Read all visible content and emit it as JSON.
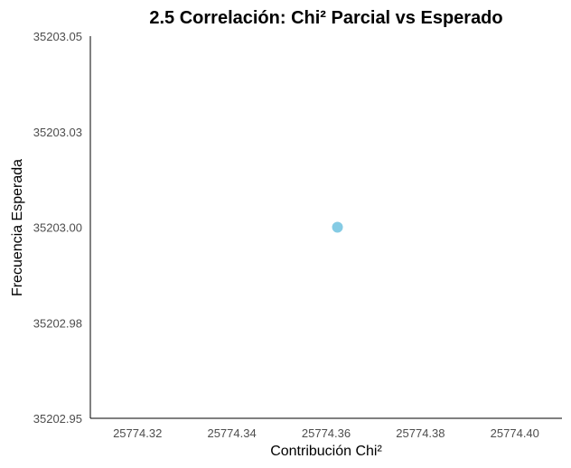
{
  "chart_data": {
    "type": "scatter",
    "title": "2.5 Correlación: Chi² Parcial vs Esperado",
    "xlabel": "Contribución Chi²",
    "ylabel": "Frecuencia Esperada",
    "xlim": [
      25774.31,
      25774.41
    ],
    "ylim": [
      35202.95,
      35203.05
    ],
    "x_ticks": [
      25774.32,
      25774.34,
      25774.36,
      25774.38,
      25774.4
    ],
    "x_tick_labels": [
      "25774.32",
      "25774.34",
      "25774.36",
      "25774.38",
      "25774.40"
    ],
    "y_ticks": [
      35202.95,
      35202.975,
      35203.0,
      35203.025,
      35203.05
    ],
    "y_tick_labels": [
      "35202.95",
      "35202.98",
      "35203.00",
      "35203.03",
      "35203.05"
    ],
    "grid": false,
    "series": [
      {
        "color": "#7ec8e3",
        "points": [
          {
            "x": 25774.3624,
            "y": 35203.0
          }
        ]
      }
    ]
  }
}
